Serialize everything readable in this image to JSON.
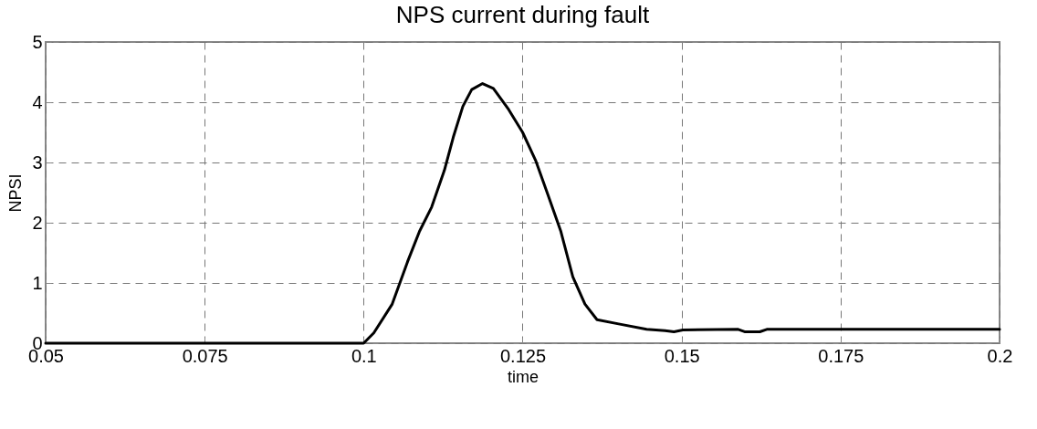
{
  "chart_data": {
    "type": "line",
    "title": "NPS current during fault",
    "xlabel": "time",
    "ylabel": "NPSI",
    "xlim": [
      0.05,
      0.2
    ],
    "xticks": [
      0.05,
      0.075,
      0.1,
      0.125,
      0.15,
      0.175,
      0.2
    ],
    "ylim": [
      0,
      5
    ],
    "yticks": [
      0,
      1,
      2,
      3,
      4,
      5
    ],
    "grid": true,
    "line_style": "solid",
    "marker": "none",
    "series": [
      {
        "color": "#000000",
        "x": [
          0.05,
          0.1,
          0.1016,
          0.1045,
          0.1069,
          0.1088,
          0.1107,
          0.1127,
          0.1141,
          0.1156,
          0.117,
          0.1187,
          0.1204,
          0.1228,
          0.125,
          0.1271,
          0.129,
          0.131,
          0.1329,
          0.1348,
          0.1367,
          0.1401,
          0.1445,
          0.1474,
          0.1488,
          0.1502,
          0.1589,
          0.1599,
          0.1623,
          0.1634,
          0.2
        ],
        "values": [
          0,
          0,
          0.17,
          0.65,
          1.35,
          1.86,
          2.26,
          2.87,
          3.42,
          3.93,
          4.21,
          4.31,
          4.23,
          3.88,
          3.5,
          3.02,
          2.46,
          1.86,
          1.1,
          0.65,
          0.39,
          0.32,
          0.23,
          0.21,
          0.19,
          0.22,
          0.23,
          0.19,
          0.19,
          0.23,
          0.23
        ]
      }
    ]
  }
}
